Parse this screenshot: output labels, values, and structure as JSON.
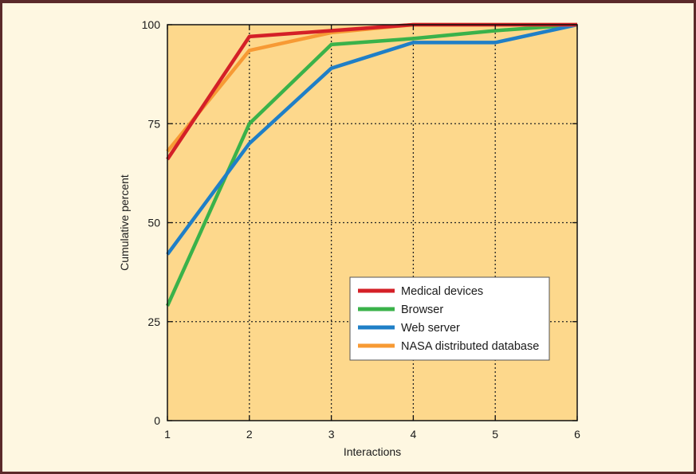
{
  "chart_data": {
    "type": "line",
    "title": "",
    "xlabel": "Interactions",
    "ylabel": "Cumulative percent",
    "x": [
      1,
      2,
      3,
      4,
      5,
      6
    ],
    "xlim": [
      1,
      6
    ],
    "ylim": [
      0,
      100
    ],
    "xticks": [
      "1",
      "2",
      "3",
      "4",
      "5",
      "6"
    ],
    "yticks": [
      "0",
      "25",
      "50",
      "75",
      "100"
    ],
    "grid": true,
    "legend_position": "lower-right",
    "plot_background": "#fdd88c",
    "series": [
      {
        "name": "Medical devices",
        "color": "#d42027",
        "values": [
          66,
          97,
          98.5,
          100,
          100,
          100
        ]
      },
      {
        "name": "Browser",
        "color": "#3ab24a",
        "values": [
          29,
          75,
          95,
          96.5,
          98.5,
          100
        ]
      },
      {
        "name": "Web server",
        "color": "#1f7fc7",
        "values": [
          42,
          70,
          89,
          95.5,
          95.5,
          100
        ]
      },
      {
        "name": "NASA distributed database",
        "color": "#f79a34",
        "values": [
          68,
          93.5,
          98,
          100,
          100,
          100
        ]
      }
    ]
  }
}
